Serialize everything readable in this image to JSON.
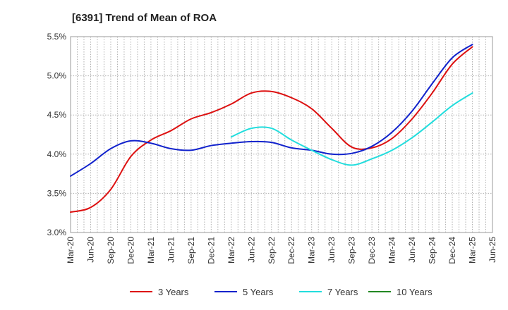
{
  "chart_data": {
    "type": "line",
    "title": "[6391]  Trend of Mean of ROA",
    "xlabel": "",
    "ylabel": "",
    "x_ticks": [
      "Mar-20",
      "Jun-20",
      "Sep-20",
      "Dec-20",
      "Mar-21",
      "Jun-21",
      "Sep-21",
      "Dec-21",
      "Mar-22",
      "Jun-22",
      "Sep-22",
      "Dec-22",
      "Mar-23",
      "Jun-23",
      "Sep-23",
      "Dec-23",
      "Mar-24",
      "Jun-24",
      "Sep-24",
      "Dec-24",
      "Mar-25",
      "Jun-25"
    ],
    "y_ticks": [
      "3.0%",
      "3.5%",
      "4.0%",
      "4.5%",
      "5.0%",
      "5.5%"
    ],
    "ylim": [
      3.0,
      5.5
    ],
    "grid": "dotted vertical and horizontal",
    "legend_position": "bottom",
    "series": [
      {
        "name": "3 Years",
        "color": "#dd1111",
        "points": [
          [
            "Mar-20",
            3.26
          ],
          [
            "Jun-20",
            3.32
          ],
          [
            "Sep-20",
            3.55
          ],
          [
            "Dec-20",
            3.97
          ],
          [
            "Mar-21",
            4.18
          ],
          [
            "Jun-21",
            4.3
          ],
          [
            "Sep-21",
            4.45
          ],
          [
            "Dec-21",
            4.53
          ],
          [
            "Mar-22",
            4.64
          ],
          [
            "Jun-22",
            4.78
          ],
          [
            "Sep-22",
            4.8
          ],
          [
            "Dec-22",
            4.72
          ],
          [
            "Mar-23",
            4.58
          ],
          [
            "Jun-23",
            4.33
          ],
          [
            "Sep-23",
            4.09
          ],
          [
            "Dec-23",
            4.08
          ],
          [
            "Mar-24",
            4.2
          ],
          [
            "Jun-24",
            4.45
          ],
          [
            "Sep-24",
            4.78
          ],
          [
            "Dec-24",
            5.15
          ],
          [
            "Mar-25",
            5.37
          ]
        ]
      },
      {
        "name": "5 Years",
        "color": "#1122cc",
        "points": [
          [
            "Mar-20",
            3.72
          ],
          [
            "Jun-20",
            3.88
          ],
          [
            "Sep-20",
            4.07
          ],
          [
            "Dec-20",
            4.17
          ],
          [
            "Mar-21",
            4.14
          ],
          [
            "Jun-21",
            4.07
          ],
          [
            "Sep-21",
            4.05
          ],
          [
            "Dec-21",
            4.11
          ],
          [
            "Mar-22",
            4.14
          ],
          [
            "Jun-22",
            4.16
          ],
          [
            "Sep-22",
            4.15
          ],
          [
            "Dec-22",
            4.08
          ],
          [
            "Mar-23",
            4.05
          ],
          [
            "Jun-23",
            4.0
          ],
          [
            "Sep-23",
            4.01
          ],
          [
            "Dec-23",
            4.1
          ],
          [
            "Mar-24",
            4.28
          ],
          [
            "Jun-24",
            4.55
          ],
          [
            "Sep-24",
            4.9
          ],
          [
            "Dec-24",
            5.23
          ],
          [
            "Mar-25",
            5.4
          ]
        ]
      },
      {
        "name": "7 Years",
        "color": "#22dddd",
        "points": [
          [
            "Mar-22",
            4.22
          ],
          [
            "Jun-22",
            4.33
          ],
          [
            "Sep-22",
            4.33
          ],
          [
            "Dec-22",
            4.18
          ],
          [
            "Mar-23",
            4.05
          ],
          [
            "Jun-23",
            3.93
          ],
          [
            "Sep-23",
            3.86
          ],
          [
            "Dec-23",
            3.94
          ],
          [
            "Mar-24",
            4.05
          ],
          [
            "Jun-24",
            4.21
          ],
          [
            "Sep-24",
            4.41
          ],
          [
            "Dec-24",
            4.62
          ],
          [
            "Mar-25",
            4.78
          ]
        ]
      },
      {
        "name": "10 Years",
        "color": "#228822",
        "points": []
      }
    ]
  }
}
